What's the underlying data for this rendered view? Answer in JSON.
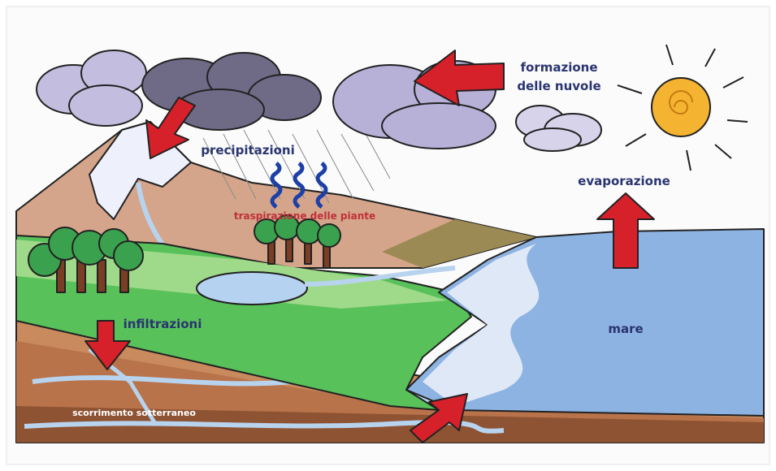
{
  "labels": {
    "cloud_formation": [
      "formazione",
      "delle nuvole"
    ],
    "precipitation": "precipitazioni",
    "evaporation": "evaporazione",
    "transpiration": "traspirazione delle piante",
    "infiltration": "infiltrazioni",
    "sea": "mare",
    "groundwater_flow": "scorrimento sotterraneo"
  }
}
